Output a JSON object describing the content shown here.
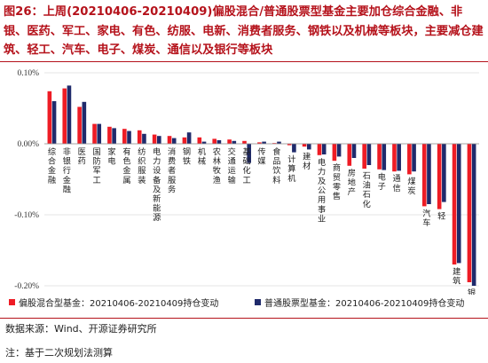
{
  "figure": {
    "title": "图26：上周(20210406-20210409)偏股混合/普通股票型基金主要加仓综合金融、非银、医药、军工、家电、有色、纺服、电新、消费者服务、钢铁以及机械等板块，主要减仓建筑、轻工、汽车、电子、煤炭、通信以及银行等板块",
    "source": "数据来源：Wind、开源证券研究所",
    "note": "注：基于二次规划法测算"
  },
  "colors": {
    "series1": "#ee1c25",
    "series2": "#1f2a6b",
    "axis": "#999999",
    "title": "#b5121b"
  },
  "chart_data": {
    "type": "bar",
    "ylim": [
      -0.2,
      0.1
    ],
    "y_ticks": [
      "0.10%",
      "0.00%",
      "-0.10%",
      "-0.20%"
    ],
    "y_tick_values": [
      0.1,
      0.0,
      -0.1,
      -0.2
    ],
    "categories": [
      "综合金融",
      "非银行金融",
      "医药",
      "国防军工",
      "家电",
      "有色金属",
      "纺织服装",
      "电力设备及新能源",
      "消费者服务",
      "钢铁",
      "机械",
      "农林牧渔",
      "交通运输",
      "基础化工",
      "传媒",
      "食品饮料",
      "计算机",
      "建材",
      "电力及公用事业",
      "商贸零售",
      "房地产",
      "石油石化",
      "电子",
      "通信",
      "煤炭",
      "汽车",
      "轻工制造",
      "建筑",
      "银行"
    ],
    "visible_labels": [
      "综合金融",
      "非银行金融",
      "医药",
      "国防军工",
      "家电",
      "有色金属",
      "纺织服装",
      "电力设备及新能源",
      "消费者服务",
      "钢铁",
      "机械",
      "农林牧渔",
      "交通运输",
      "基础化工",
      "传媒",
      "食品饮料",
      "计算机",
      "建材",
      "电力及公用事业",
      "商贸零售",
      "房地产",
      "石油石化",
      "电子",
      "通信",
      "煤炭",
      "汽车",
      "轻",
      "建筑",
      "银行"
    ],
    "series": [
      {
        "name": "偏股混合型基金：20210406-20210409持仓变动",
        "values": [
          0.074,
          0.078,
          0.052,
          0.028,
          0.024,
          0.021,
          0.019,
          0.013,
          0.011,
          0.009,
          0.009,
          0.007,
          0.006,
          0.004,
          0.002,
          0.001,
          -0.002,
          -0.004,
          -0.016,
          -0.024,
          -0.031,
          -0.035,
          -0.036,
          -0.039,
          -0.043,
          -0.088,
          -0.092,
          -0.17,
          -0.195
        ]
      },
      {
        "name": "普通股票型基金：20210406-20210409持仓变动",
        "values": [
          0.06,
          0.082,
          0.059,
          0.028,
          0.022,
          0.018,
          0.014,
          0.011,
          0.008,
          0.016,
          0.003,
          0.005,
          0.004,
          -0.027,
          0.003,
          0.003,
          -0.012,
          -0.008,
          -0.015,
          -0.018,
          -0.02,
          -0.03,
          -0.037,
          -0.038,
          -0.039,
          -0.085,
          -0.082,
          -0.168,
          -0.2
        ]
      }
    ]
  }
}
